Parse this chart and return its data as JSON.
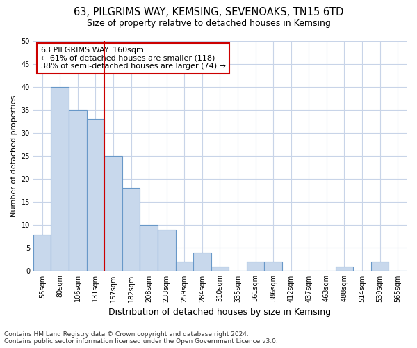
{
  "title1": "63, PILGRIMS WAY, KEMSING, SEVENOAKS, TN15 6TD",
  "title2": "Size of property relative to detached houses in Kemsing",
  "xlabel": "Distribution of detached houses by size in Kemsing",
  "ylabel": "Number of detached properties",
  "categories": [
    "55sqm",
    "80sqm",
    "106sqm",
    "131sqm",
    "157sqm",
    "182sqm",
    "208sqm",
    "233sqm",
    "259sqm",
    "284sqm",
    "310sqm",
    "335sqm",
    "361sqm",
    "386sqm",
    "412sqm",
    "437sqm",
    "463sqm",
    "488sqm",
    "514sqm",
    "539sqm",
    "565sqm"
  ],
  "values": [
    8,
    40,
    35,
    33,
    25,
    18,
    10,
    9,
    2,
    4,
    1,
    0,
    2,
    2,
    0,
    0,
    0,
    1,
    0,
    2,
    0
  ],
  "bar_color": "#c8d8ec",
  "bar_edge_color": "#6898c8",
  "vline_color": "#cc0000",
  "vline_index": 3.5,
  "annotation_line1": "63 PILGRIMS WAY: 160sqm",
  "annotation_line2": "← 61% of detached houses are smaller (118)",
  "annotation_line3": "38% of semi-detached houses are larger (74) →",
  "annotation_box_color": "#ffffff",
  "annotation_box_edge_color": "#cc0000",
  "ylim": [
    0,
    50
  ],
  "yticks": [
    0,
    5,
    10,
    15,
    20,
    25,
    30,
    35,
    40,
    45,
    50
  ],
  "footer1": "Contains HM Land Registry data © Crown copyright and database right 2024.",
  "footer2": "Contains public sector information licensed under the Open Government Licence v3.0.",
  "bg_color": "#ffffff",
  "grid_color": "#c8d4e8",
  "title1_fontsize": 10.5,
  "title2_fontsize": 9,
  "ylabel_fontsize": 8,
  "xlabel_fontsize": 9,
  "tick_fontsize": 7,
  "footer_fontsize": 6.5,
  "annot_fontsize": 8
}
